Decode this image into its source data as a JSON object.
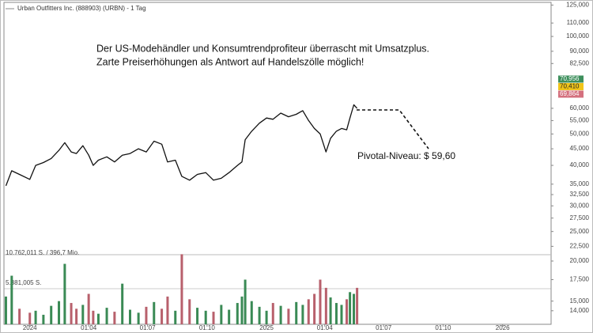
{
  "chart_data": {
    "type": "line",
    "title": "Urban Outfitters Inc. (888903) (URBN) - 1 Tag",
    "annotation_lines": [
      "Der US-Modehändler und Konsumtrendprofiteur überrascht mit Umsatzplus.",
      "Zarte Preiserhöhungen als Antwort auf Handelszölle möglich!"
    ],
    "pivot_label": "Pivotal-Niveau: $ 59,60",
    "price_labels": [
      {
        "label": "70,956",
        "color": "#3d8f5c"
      },
      {
        "label": "70,410",
        "color": "#f0c419"
      },
      {
        "label": "69,864",
        "color": "#d4707e"
      }
    ],
    "volume_labels": [
      "10.762,011 S. / 396,7 Mio.",
      "5.381,005 S."
    ],
    "log_scale": true,
    "x": [
      "2023-11-25",
      "2023-12-04",
      "2023-12-16",
      "2024-01-01",
      "2024-01-10",
      "2024-01-22",
      "2024-02-03",
      "2024-02-15",
      "2024-02-24",
      "2024-03-05",
      "2024-03-13",
      "2024-03-23",
      "2024-04-01",
      "2024-04-08",
      "2024-04-16",
      "2024-04-29",
      "2024-05-11",
      "2024-05-23",
      "2024-06-04",
      "2024-06-17",
      "2024-06-29",
      "2024-07-11",
      "2024-07-23",
      "2024-08-01",
      "2024-08-13",
      "2024-08-23",
      "2024-09-04",
      "2024-09-16",
      "2024-09-29",
      "2024-10-11",
      "2024-10-23",
      "2024-11-04",
      "2024-11-17",
      "2024-11-24",
      "2024-11-29",
      "2024-12-09",
      "2024-12-21",
      "2025-01-01",
      "2025-01-11",
      "2025-01-23",
      "2025-02-04",
      "2025-02-16",
      "2025-02-26",
      "2025-03-07",
      "2025-03-16",
      "2025-03-25",
      "2025-04-03",
      "2025-04-10",
      "2025-04-19",
      "2025-04-27",
      "2025-05-05",
      "2025-05-10",
      "2025-05-16",
      "2025-05-21"
    ],
    "series": [
      {
        "name": "URBN",
        "color": "#111111",
        "values": [
          34.6,
          38.5,
          37.5,
          36.2,
          40.0,
          40.8,
          42.0,
          44.5,
          47.0,
          44.0,
          43.5,
          46.0,
          43.0,
          40.0,
          41.5,
          42.5,
          41.0,
          43.0,
          43.5,
          45.0,
          44.0,
          47.5,
          46.5,
          41.0,
          41.5,
          37.0,
          36.0,
          37.5,
          38.0,
          36.0,
          36.5,
          38.0,
          40.0,
          41.0,
          48.0,
          51.0,
          54.0,
          56.0,
          55.5,
          58.0,
          56.5,
          57.5,
          59.0,
          55.0,
          52.0,
          50.0,
          44.0,
          48.5,
          51.0,
          52.0,
          51.5,
          56.0,
          61.5,
          60.0
        ]
      },
      {
        "name": "Volumen",
        "axis": "volume",
        "up_color": "#3a8a55",
        "down_color": "#b8606c",
        "values": [
          15.5,
          18.0,
          14.2,
          13.8,
          14.0,
          13.6,
          14.5,
          15.0,
          19.6,
          14.8,
          14.2,
          14.6,
          15.8,
          14.0,
          13.7,
          14.3,
          13.9,
          17.0,
          14.1,
          13.8,
          14.4,
          14.9,
          14.2,
          15.5,
          14.0,
          21.0,
          15.2,
          14.3,
          14.0,
          13.9,
          14.6,
          14.1,
          14.8,
          15.5,
          17.5,
          15.0,
          14.4,
          14.0,
          14.8,
          14.5,
          14.2,
          14.9,
          14.6,
          15.2,
          15.8,
          17.5,
          16.5,
          15.4,
          14.8,
          14.6,
          15.2,
          16.0,
          15.8,
          16.5
        ]
      }
    ],
    "xlim": [
      "2023-11-22",
      "2026-03-17"
    ],
    "xticks": [
      {
        "value": "2024-01-01",
        "label": "2024"
      },
      {
        "value": "2024-04-01",
        "label": "01.04"
      },
      {
        "value": "2024-07-01",
        "label": "01.07"
      },
      {
        "value": "2024-10-01",
        "label": "01.10"
      },
      {
        "value": "2025-01-01",
        "label": "2025"
      },
      {
        "value": "2025-04-01",
        "label": "01.04"
      },
      {
        "value": "2025-07-01",
        "label": "01.07"
      },
      {
        "value": "2025-10-01",
        "label": "01.10"
      },
      {
        "value": "2026-01-01",
        "label": "2026"
      }
    ],
    "ylim": [
      21.2,
      127.4
    ],
    "yticks": [
      {
        "value": 125,
        "label": "125,000"
      },
      {
        "value": 110,
        "label": "110,000"
      },
      {
        "value": 100,
        "label": "100,000"
      },
      {
        "value": 90,
        "label": "90,000"
      },
      {
        "value": 82.5,
        "label": "82,500"
      },
      {
        "value": 60,
        "label": "60,000"
      },
      {
        "value": 55,
        "label": "55,000"
      },
      {
        "value": 50,
        "label": "50,000"
      },
      {
        "value": 45,
        "label": "45,000"
      },
      {
        "value": 40,
        "label": "40,000"
      },
      {
        "value": 35,
        "label": "35,000"
      },
      {
        "value": 32.5,
        "label": "32,500"
      },
      {
        "value": 30,
        "label": "30,000"
      },
      {
        "value": 27.5,
        "label": "27,500"
      },
      {
        "value": 25,
        "label": "25,000"
      },
      {
        "value": 22.5,
        "label": "22,500"
      }
    ],
    "vlim": [
      12.7,
      20.93
    ],
    "vticks": [
      {
        "value": 20,
        "label": "20,000"
      },
      {
        "value": 17.5,
        "label": "17,500"
      },
      {
        "value": 15,
        "label": "15,000"
      },
      {
        "value": 14,
        "label": "14,000"
      }
    ]
  }
}
